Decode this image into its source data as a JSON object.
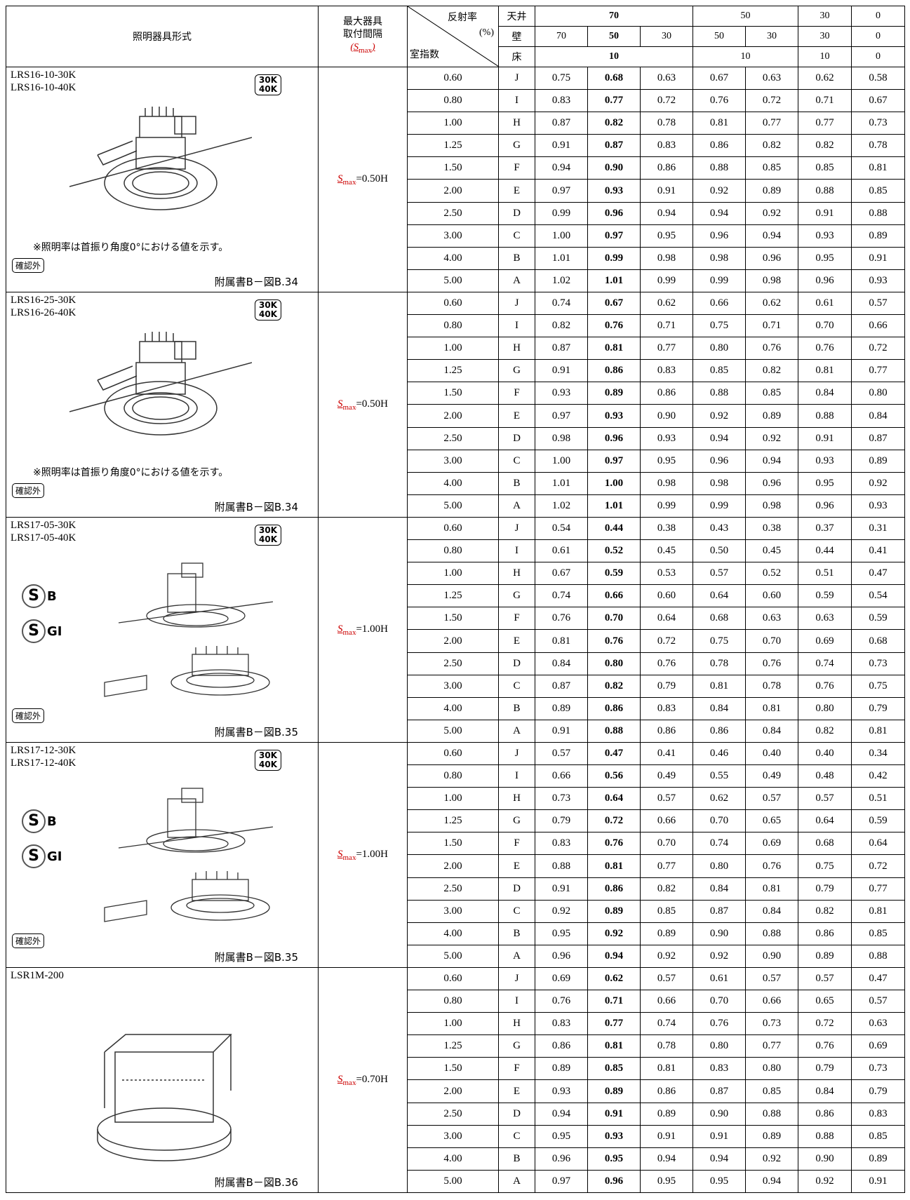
{
  "header": {
    "fixture": "照明器具形式",
    "spacing": [
      "最大器具",
      "取付間隔"
    ],
    "spacing_smax": {
      "prefix": "(",
      "symbol": "S",
      "subscript": "max",
      "suffix": ")"
    },
    "reflectance": "反射率",
    "unit": "(%)",
    "room_index": "室指数",
    "ceiling": "天井",
    "wall": "壁",
    "floor": "床",
    "ceiling_values": [
      "70",
      "50",
      "30",
      "0"
    ],
    "wall_values": [
      "70",
      "50",
      "30",
      "50",
      "30",
      "30",
      "0"
    ],
    "floor_values": [
      "10",
      "10",
      "10",
      "0"
    ]
  },
  "groups": [
    {
      "models": [
        "LRS16-10-30K",
        "LRS16-10-40K"
      ],
      "badge": [
        "30K",
        "40K"
      ],
      "note": "※照明率は首振り角度0°における値を示す。",
      "confirm": "確認外",
      "figure": "附属書B－図B.34",
      "smax": {
        "symbol": "S",
        "subscript": "max",
        "value": "=0.50H"
      },
      "rows": [
        [
          "0.60",
          "J",
          "0.75",
          "0.68",
          "0.63",
          "0.67",
          "0.63",
          "0.62",
          "0.58"
        ],
        [
          "0.80",
          "I",
          "0.83",
          "0.77",
          "0.72",
          "0.76",
          "0.72",
          "0.71",
          "0.67"
        ],
        [
          "1.00",
          "H",
          "0.87",
          "0.82",
          "0.78",
          "0.81",
          "0.77",
          "0.77",
          "0.73"
        ],
        [
          "1.25",
          "G",
          "0.91",
          "0.87",
          "0.83",
          "0.86",
          "0.82",
          "0.82",
          "0.78"
        ],
        [
          "1.50",
          "F",
          "0.94",
          "0.90",
          "0.86",
          "0.88",
          "0.85",
          "0.85",
          "0.81"
        ],
        [
          "2.00",
          "E",
          "0.97",
          "0.93",
          "0.91",
          "0.92",
          "0.89",
          "0.88",
          "0.85"
        ],
        [
          "2.50",
          "D",
          "0.99",
          "0.96",
          "0.94",
          "0.94",
          "0.92",
          "0.91",
          "0.88"
        ],
        [
          "3.00",
          "C",
          "1.00",
          "0.97",
          "0.95",
          "0.96",
          "0.94",
          "0.93",
          "0.89"
        ],
        [
          "4.00",
          "B",
          "1.01",
          "0.99",
          "0.98",
          "0.98",
          "0.96",
          "0.95",
          "0.91"
        ],
        [
          "5.00",
          "A",
          "1.02",
          "1.01",
          "0.99",
          "0.99",
          "0.98",
          "0.96",
          "0.93"
        ]
      ]
    },
    {
      "models": [
        "LRS16-25-30K",
        "LRS16-26-40K"
      ],
      "badge": [
        "30K",
        "40K"
      ],
      "note": "※照明率は首振り角度0°における値を示す。",
      "confirm": "確認外",
      "figure": "附属書B－図B.34",
      "smax": {
        "symbol": "S",
        "subscript": "max",
        "value": "=0.50H"
      },
      "rows": [
        [
          "0.60",
          "J",
          "0.74",
          "0.67",
          "0.62",
          "0.66",
          "0.62",
          "0.61",
          "0.57"
        ],
        [
          "0.80",
          "I",
          "0.82",
          "0.76",
          "0.71",
          "0.75",
          "0.71",
          "0.70",
          "0.66"
        ],
        [
          "1.00",
          "H",
          "0.87",
          "0.81",
          "0.77",
          "0.80",
          "0.76",
          "0.76",
          "0.72"
        ],
        [
          "1.25",
          "G",
          "0.91",
          "0.86",
          "0.83",
          "0.85",
          "0.82",
          "0.81",
          "0.77"
        ],
        [
          "1.50",
          "F",
          "0.93",
          "0.89",
          "0.86",
          "0.88",
          "0.85",
          "0.84",
          "0.80"
        ],
        [
          "2.00",
          "E",
          "0.97",
          "0.93",
          "0.90",
          "0.92",
          "0.89",
          "0.88",
          "0.84"
        ],
        [
          "2.50",
          "D",
          "0.98",
          "0.96",
          "0.93",
          "0.94",
          "0.92",
          "0.91",
          "0.87"
        ],
        [
          "3.00",
          "C",
          "1.00",
          "0.97",
          "0.95",
          "0.96",
          "0.94",
          "0.93",
          "0.89"
        ],
        [
          "4.00",
          "B",
          "1.01",
          "1.00",
          "0.98",
          "0.98",
          "0.96",
          "0.95",
          "0.92"
        ],
        [
          "5.00",
          "A",
          "1.02",
          "1.01",
          "0.99",
          "0.99",
          "0.98",
          "0.96",
          "0.93"
        ]
      ]
    },
    {
      "models": [
        "LRS17-05-30K",
        "LRS17-05-40K"
      ],
      "badge": [
        "30K",
        "40K"
      ],
      "marks": [
        {
          "letter": "S",
          "sub": "B"
        },
        {
          "letter": "S",
          "sub": "GI"
        }
      ],
      "confirm": "確認外",
      "figure": "附属書B－図B.35",
      "smax": {
        "symbol": "S",
        "subscript": "max",
        "value": "=1.00H"
      },
      "rows": [
        [
          "0.60",
          "J",
          "0.54",
          "0.44",
          "0.38",
          "0.43",
          "0.38",
          "0.37",
          "0.31"
        ],
        [
          "0.80",
          "I",
          "0.61",
          "0.52",
          "0.45",
          "0.50",
          "0.45",
          "0.44",
          "0.41"
        ],
        [
          "1.00",
          "H",
          "0.67",
          "0.59",
          "0.53",
          "0.57",
          "0.52",
          "0.51",
          "0.47"
        ],
        [
          "1.25",
          "G",
          "0.74",
          "0.66",
          "0.60",
          "0.64",
          "0.60",
          "0.59",
          "0.54"
        ],
        [
          "1.50",
          "F",
          "0.76",
          "0.70",
          "0.64",
          "0.68",
          "0.63",
          "0.63",
          "0.59"
        ],
        [
          "2.00",
          "E",
          "0.81",
          "0.76",
          "0.72",
          "0.75",
          "0.70",
          "0.69",
          "0.68"
        ],
        [
          "2.50",
          "D",
          "0.84",
          "0.80",
          "0.76",
          "0.78",
          "0.76",
          "0.74",
          "0.73"
        ],
        [
          "3.00",
          "C",
          "0.87",
          "0.82",
          "0.79",
          "0.81",
          "0.78",
          "0.76",
          "0.75"
        ],
        [
          "4.00",
          "B",
          "0.89",
          "0.86",
          "0.83",
          "0.84",
          "0.81",
          "0.80",
          "0.79"
        ],
        [
          "5.00",
          "A",
          "0.91",
          "0.88",
          "0.86",
          "0.86",
          "0.84",
          "0.82",
          "0.81"
        ]
      ]
    },
    {
      "models": [
        "LRS17-12-30K",
        "LRS17-12-40K"
      ],
      "badge": [
        "30K",
        "40K"
      ],
      "marks": [
        {
          "letter": "S",
          "sub": "B"
        },
        {
          "letter": "S",
          "sub": "GI"
        }
      ],
      "confirm": "確認外",
      "figure": "附属書B－図B.35",
      "smax": {
        "symbol": "S",
        "subscript": "max",
        "value": "=1.00H"
      },
      "rows": [
        [
          "0.60",
          "J",
          "0.57",
          "0.47",
          "0.41",
          "0.46",
          "0.40",
          "0.40",
          "0.34"
        ],
        [
          "0.80",
          "I",
          "0.66",
          "0.56",
          "0.49",
          "0.55",
          "0.49",
          "0.48",
          "0.42"
        ],
        [
          "1.00",
          "H",
          "0.73",
          "0.64",
          "0.57",
          "0.62",
          "0.57",
          "0.57",
          "0.51"
        ],
        [
          "1.25",
          "G",
          "0.79",
          "0.72",
          "0.66",
          "0.70",
          "0.65",
          "0.64",
          "0.59"
        ],
        [
          "1.50",
          "F",
          "0.83",
          "0.76",
          "0.70",
          "0.74",
          "0.69",
          "0.68",
          "0.64"
        ],
        [
          "2.00",
          "E",
          "0.88",
          "0.81",
          "0.77",
          "0.80",
          "0.76",
          "0.75",
          "0.72"
        ],
        [
          "2.50",
          "D",
          "0.91",
          "0.86",
          "0.82",
          "0.84",
          "0.81",
          "0.79",
          "0.77"
        ],
        [
          "3.00",
          "C",
          "0.92",
          "0.89",
          "0.85",
          "0.87",
          "0.84",
          "0.82",
          "0.81"
        ],
        [
          "4.00",
          "B",
          "0.95",
          "0.92",
          "0.89",
          "0.90",
          "0.88",
          "0.86",
          "0.85"
        ],
        [
          "5.00",
          "A",
          "0.96",
          "0.94",
          "0.92",
          "0.92",
          "0.90",
          "0.89",
          "0.88"
        ]
      ]
    },
    {
      "models": [
        "LSR1M-200"
      ],
      "figure": "附属書B－図B.36",
      "smax": {
        "symbol": "S",
        "subscript": "max",
        "value": "=0.70H"
      },
      "rows": [
        [
          "0.60",
          "J",
          "0.69",
          "0.62",
          "0.57",
          "0.61",
          "0.57",
          "0.57",
          "0.47"
        ],
        [
          "0.80",
          "I",
          "0.76",
          "0.71",
          "0.66",
          "0.70",
          "0.66",
          "0.65",
          "0.57"
        ],
        [
          "1.00",
          "H",
          "0.83",
          "0.77",
          "0.74",
          "0.76",
          "0.73",
          "0.72",
          "0.63"
        ],
        [
          "1.25",
          "G",
          "0.86",
          "0.81",
          "0.78",
          "0.80",
          "0.77",
          "0.76",
          "0.69"
        ],
        [
          "1.50",
          "F",
          "0.89",
          "0.85",
          "0.81",
          "0.83",
          "0.80",
          "0.79",
          "0.73"
        ],
        [
          "2.00",
          "E",
          "0.93",
          "0.89",
          "0.86",
          "0.87",
          "0.85",
          "0.84",
          "0.79"
        ],
        [
          "2.50",
          "D",
          "0.94",
          "0.91",
          "0.89",
          "0.90",
          "0.88",
          "0.86",
          "0.83"
        ],
        [
          "3.00",
          "C",
          "0.95",
          "0.93",
          "0.91",
          "0.91",
          "0.89",
          "0.88",
          "0.85"
        ],
        [
          "4.00",
          "B",
          "0.96",
          "0.95",
          "0.94",
          "0.94",
          "0.92",
          "0.90",
          "0.89"
        ],
        [
          "5.00",
          "A",
          "0.97",
          "0.96",
          "0.95",
          "0.95",
          "0.94",
          "0.92",
          "0.91"
        ]
      ]
    }
  ]
}
